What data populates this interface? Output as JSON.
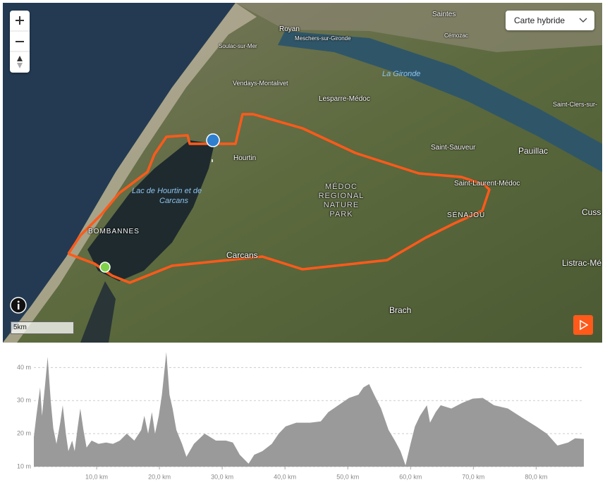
{
  "map": {
    "map_type": "Carte hybride",
    "scale": "5km",
    "labels": [
      "Saintes",
      "Royan",
      "Meschers-sur-Gironde",
      "Cémozac",
      "Soulac-sur-Mer",
      "La Gironde",
      "Vendays-Montalivet",
      "Lesparre-Médoc",
      "Saint-Clers-sur-",
      "Hourtin",
      "Saint-Sauveur",
      "Pauillac",
      "Lac de Hourtin et de",
      "Carcans",
      "MÉDOC REGIONAL NATURE PARK",
      "Saint-Laurent-Médoc",
      "SÉNAJOU",
      "Cuss",
      "BOMBANNES",
      "Carcans",
      "Listrac-Mé",
      "Brach"
    ]
  },
  "chart_data": {
    "type": "area",
    "color": "#9a9a9a",
    "x": [
      0,
      0.4,
      1.0,
      1.3,
      1.8,
      2.2,
      2.7,
      3.1,
      3.6,
      4.2,
      4.6,
      5.1,
      5.5,
      6.1,
      6.5,
      7.0,
      7.4,
      7.9,
      8.4,
      9.2,
      10.3,
      11.5,
      12.6,
      13.7,
      14.8,
      16.0,
      17.1,
      17.6,
      18.2,
      18.8,
      19.3,
      19.9,
      20.4,
      21.1,
      21.6,
      22.1,
      22.7,
      23.6,
      24.3,
      25.5,
      27.2,
      29.0,
      30.6,
      31.7,
      32.8,
      34.2,
      35.1,
      36.4,
      37.9,
      39.0,
      40.1,
      41.8,
      44.0,
      45.7,
      46.9,
      48.5,
      50.2,
      51.7,
      52.5,
      53.4,
      54.2,
      55.3,
      56.5,
      57.5,
      58.4,
      59.2,
      60.0,
      60.7,
      61.5,
      62.6,
      63.1,
      64.0,
      64.8,
      66.5,
      68.2,
      69.9,
      71.5,
      73.3,
      75.5,
      77.8,
      80.0,
      81.7,
      83.4,
      85.1,
      86.2,
      87.6
    ],
    "values": [
      19,
      25.4,
      34,
      25.4,
      35,
      43.2,
      29.7,
      21.6,
      16.9,
      23.3,
      28.6,
      20,
      14.7,
      17.9,
      14.7,
      22.2,
      27.6,
      21.1,
      15.8,
      17.9,
      16.9,
      17.3,
      16.9,
      17.9,
      20,
      17.9,
      21.1,
      25.4,
      20,
      26.5,
      20,
      25.4,
      31.8,
      44.7,
      31.8,
      27.6,
      21.1,
      16.9,
      13,
      16.9,
      20,
      17.9,
      17.9,
      17.3,
      13.6,
      10.9,
      13.6,
      14.7,
      16.9,
      20,
      22.2,
      23.3,
      23.3,
      23.7,
      26.5,
      28.6,
      30.8,
      31.8,
      34,
      35,
      31.8,
      27.6,
      21.1,
      17.9,
      14.7,
      10.4,
      16.9,
      22.2,
      25.4,
      28.6,
      23.3,
      26.5,
      28.6,
      27.6,
      29.3,
      30.6,
      30.8,
      28.6,
      27.6,
      24.8,
      22.2,
      20,
      16.4,
      17.3,
      18.6,
      18.4
    ],
    "xlim": [
      0,
      87.6
    ],
    "ylim": [
      10,
      45
    ],
    "xticks": [
      {
        "value": 10,
        "label": "10,0 km"
      },
      {
        "value": 20,
        "label": "20,0 km"
      },
      {
        "value": 30,
        "label": "30,0 km"
      },
      {
        "value": 40,
        "label": "40,0 km"
      },
      {
        "value": 50,
        "label": "50,0 km"
      },
      {
        "value": 60,
        "label": "60,0 km"
      },
      {
        "value": 70,
        "label": "70,0 km"
      },
      {
        "value": 80,
        "label": "80,0 km"
      }
    ],
    "yticks": [
      {
        "value": 10,
        "label": "10 m"
      },
      {
        "value": 20,
        "label": "20 m"
      },
      {
        "value": 30,
        "label": "30 m"
      },
      {
        "value": 40,
        "label": "40 m"
      }
    ],
    "grid": true
  }
}
